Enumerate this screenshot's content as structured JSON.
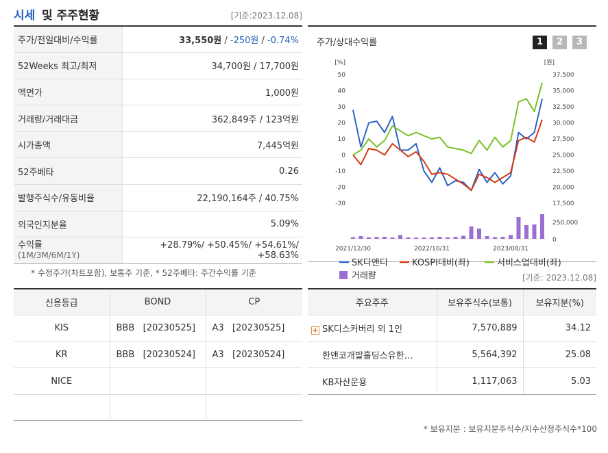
{
  "header": {
    "title_blue": "시세",
    "title_rest": "및 주주현황",
    "date": "[기준:2023.12.08]"
  },
  "price": {
    "rows": [
      {
        "label": "주가/전일대비/수익률"
      },
      {
        "label": "52Weeks 최고/최저",
        "value": "34,700원 / 17,700원"
      },
      {
        "label": "액면가",
        "value": "1,000원"
      },
      {
        "label": "거래량/거래대금",
        "value": "362,849주 / 123억원"
      },
      {
        "label": "시가총액",
        "value": "7,445억원"
      },
      {
        "label": "52주베타",
        "value": "0.26"
      },
      {
        "label": "발행주식수/유동비율",
        "value": "22,190,164주 / 40.75%"
      },
      {
        "label": "외국인지분율",
        "value": "5.09%"
      },
      {
        "label": "수익률",
        "sublabel": "(1M/3M/6M/1Y)"
      }
    ],
    "price_value": "33,550원",
    "price_sep1": " / ",
    "change": "-250원",
    "price_sep2": " / ",
    "change_pct": "-0.74%",
    "returns": "+28.79%/ +50.45%/ +54.61%/ +58.63%"
  },
  "note1": "* 수정주가(차트포함), 보통주 기준, * 52주베타: 주간수익률 기준",
  "chart_panel": {
    "title": "주가/상대수익률",
    "tabs": [
      "1",
      "2",
      "3"
    ],
    "active_tab": "1"
  },
  "chart_data": {
    "type": "line",
    "left_unit": "[%]",
    "right_unit": "[원]",
    "left_ticks": [
      50,
      40,
      30,
      20,
      10,
      0,
      -10,
      -20,
      -30
    ],
    "right_ticks": [
      "37,500",
      "35,000",
      "32,500",
      "30,000",
      "27,500",
      "25,000",
      "22,500",
      "20,000",
      "17,500"
    ],
    "ylim_left": [
      -30,
      50
    ],
    "volume_ticks": [
      "250,000",
      "0"
    ],
    "volume_max": 400000,
    "x_tick_labels": [
      "2021/12/30",
      "2022/10/31",
      "2023/08/31"
    ],
    "x_tick_index": [
      0,
      10,
      20
    ],
    "series": [
      {
        "name": "SK디앤디",
        "color": "#2a62c8",
        "values": [
          28,
          5,
          20,
          21,
          14,
          24,
          3,
          3,
          7,
          -10,
          -17,
          -8,
          -19,
          -16,
          -17,
          -22,
          -9,
          -17,
          -11,
          -18,
          -13,
          14,
          10,
          14,
          35
        ]
      },
      {
        "name": "KOSPI대비(좌)",
        "color": "#d43a14",
        "values": [
          0,
          -6,
          4,
          3,
          0,
          7,
          3,
          -1,
          2,
          -4,
          -12,
          -11,
          -12,
          -15,
          -18,
          -22,
          -12,
          -14,
          -17,
          -14,
          -11,
          9,
          11,
          8,
          22
        ]
      },
      {
        "name": "서비스업대비(좌)",
        "color": "#7bbf24",
        "values": [
          0,
          3,
          10,
          5,
          9,
          18,
          15,
          12,
          14,
          12,
          10,
          11,
          5,
          4,
          3,
          1,
          9,
          3,
          11,
          5,
          9,
          33,
          35,
          27,
          45
        ]
      }
    ],
    "volume": {
      "name": "거래량",
      "color": "#9b6fd2",
      "values": [
        25000,
        40000,
        22000,
        28000,
        30000,
        20000,
        55000,
        22000,
        18000,
        18000,
        22000,
        30000,
        22000,
        28000,
        45000,
        180000,
        150000,
        40000,
        25000,
        30000,
        55000,
        320000,
        200000,
        210000,
        360000
      ]
    }
  },
  "date2": "[기준: 2023.12.08]",
  "credit": {
    "headers": [
      "신용등급",
      "BOND",
      "CP"
    ],
    "rows": [
      {
        "agency": "KIS",
        "bond": "BBB   [20230525]",
        "cp": "A3   [20230525]"
      },
      {
        "agency": "KR",
        "bond": "BBB   [20230524]",
        "cp": "A3   [20230524]"
      },
      {
        "agency": "NICE",
        "bond": "",
        "cp": ""
      },
      {
        "agency": "",
        "bond": "",
        "cp": ""
      }
    ]
  },
  "holders": {
    "headers": [
      "주요주주",
      "보유주식수(보통)",
      "보유지분(%)"
    ],
    "rows": [
      {
        "name": "SK디스커버리 외 1인",
        "shares": "7,570,889",
        "pct": "34.12"
      },
      {
        "name": "한앤코개발홀딩스유한…",
        "shares": "5,564,392",
        "pct": "25.08"
      },
      {
        "name": "KB자산운용",
        "shares": "1,117,063",
        "pct": "5.03"
      }
    ]
  },
  "note2": "* 보유지분 : 보유지분주식수/지수산정주식수*100"
}
